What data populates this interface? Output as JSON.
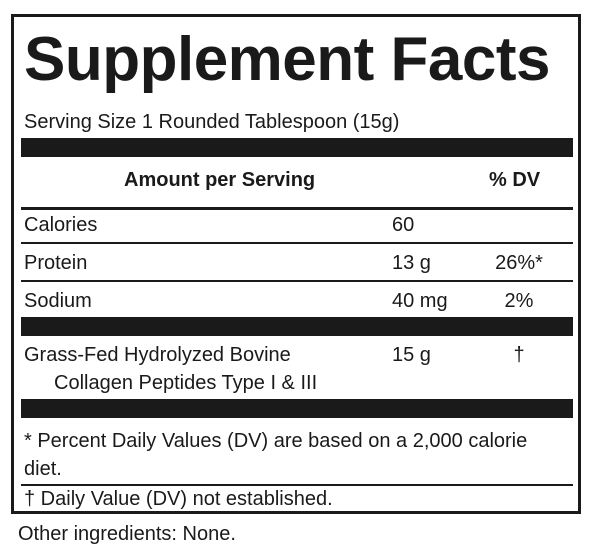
{
  "panel": {
    "title": "Supplement Facts",
    "serving_size": "Serving Size 1 Rounded Tablespoon (15g)",
    "header": {
      "amount_label": "Amount per Serving",
      "dv_label": "% DV"
    },
    "rows": [
      {
        "name": "Calories",
        "amount": "60",
        "dv": ""
      },
      {
        "name": "Protein",
        "amount": "13 g",
        "dv": "26%*"
      },
      {
        "name": "Sodium",
        "amount": "40 mg",
        "dv": "2%"
      }
    ],
    "collagen": {
      "name_line1": "Grass-Fed Hydrolyzed Bovine",
      "name_line2": "Collagen Peptides Type I & III",
      "amount": "15 g",
      "dv": "†"
    },
    "footnote_dv": "* Percent Daily Values (DV) are based on a 2,000 calorie diet.",
    "footnote_dagger": "† Daily Value (DV) not established."
  },
  "other_ingredients": "Other ingredients: None.",
  "colors": {
    "ink": "#1a1a1a",
    "background": "#ffffff"
  }
}
